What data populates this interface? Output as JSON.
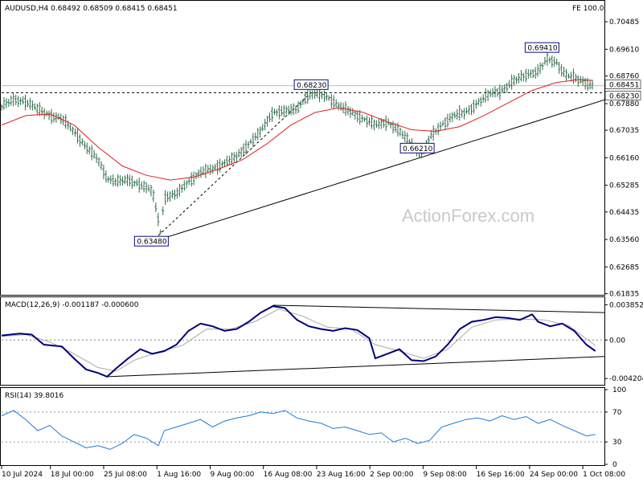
{
  "colors": {
    "price": "#2e6a4a",
    "ma": "#e02020",
    "macd": "#00007a",
    "signal": "#a8a8a8",
    "rsi": "#1a7ad8",
    "trend": "#000000",
    "box_border": "#0a0a8c"
  },
  "header": {
    "symbol_line": "AUDUSD,H4  0.68492 0.68509 0.68415 0.68451",
    "fe_label": "FE 100.0"
  },
  "watermark": "ActionForex.com",
  "chart_data": [
    {
      "type": "candlestick",
      "panel": "price",
      "ylim": [
        0.6185,
        0.711
      ],
      "yticks": [
        "0.70485",
        "0.69610",
        "0.68760",
        "0.67880",
        "0.67035",
        "0.66160",
        "0.65285",
        "0.64435",
        "0.63560",
        "0.62685",
        "0.61835"
      ],
      "current_price": "0.68451",
      "reference_level": "0.68230",
      "annotations": [
        {
          "label": "0.63480",
          "x": 0.2485,
          "value": 0.6348
        },
        {
          "label": "0.68230",
          "x": 0.5135,
          "value": 0.6823
        },
        {
          "label": "0.66210",
          "x": 0.6895,
          "value": 0.6621
        },
        {
          "label": "0.69410",
          "x": 0.8965,
          "value": 0.6941
        }
      ],
      "price_path": [
        [
          0.0,
          0.678
        ],
        [
          0.02,
          0.68
        ],
        [
          0.04,
          0.6795
        ],
        [
          0.06,
          0.677
        ],
        [
          0.08,
          0.675
        ],
        [
          0.1,
          0.674
        ],
        [
          0.12,
          0.67
        ],
        [
          0.14,
          0.665
        ],
        [
          0.16,
          0.661
        ],
        [
          0.175,
          0.655
        ],
        [
          0.19,
          0.654
        ],
        [
          0.21,
          0.6545
        ],
        [
          0.23,
          0.653
        ],
        [
          0.25,
          0.651
        ],
        [
          0.26,
          0.642
        ],
        [
          0.262,
          0.635
        ],
        [
          0.27,
          0.649
        ],
        [
          0.29,
          0.65
        ],
        [
          0.31,
          0.654
        ],
        [
          0.33,
          0.657
        ],
        [
          0.35,
          0.658
        ],
        [
          0.37,
          0.66
        ],
        [
          0.39,
          0.662
        ],
        [
          0.41,
          0.666
        ],
        [
          0.43,
          0.67
        ],
        [
          0.45,
          0.676
        ],
        [
          0.47,
          0.6765
        ],
        [
          0.49,
          0.677
        ],
        [
          0.505,
          0.681
        ],
        [
          0.52,
          0.682
        ],
        [
          0.54,
          0.681
        ],
        [
          0.56,
          0.678
        ],
        [
          0.58,
          0.676
        ],
        [
          0.6,
          0.674
        ],
        [
          0.62,
          0.672
        ],
        [
          0.64,
          0.673
        ],
        [
          0.66,
          0.67
        ],
        [
          0.68,
          0.666
        ],
        [
          0.69,
          0.663
        ],
        [
          0.7,
          0.664
        ],
        [
          0.71,
          0.668
        ],
        [
          0.73,
          0.672
        ],
        [
          0.75,
          0.675
        ],
        [
          0.77,
          0.676
        ],
        [
          0.79,
          0.679
        ],
        [
          0.81,
          0.682
        ],
        [
          0.83,
          0.683
        ],
        [
          0.85,
          0.686
        ],
        [
          0.87,
          0.688
        ],
        [
          0.89,
          0.689
        ],
        [
          0.905,
          0.693
        ],
        [
          0.92,
          0.692
        ],
        [
          0.935,
          0.688
        ],
        [
          0.95,
          0.687
        ],
        [
          0.965,
          0.6858
        ],
        [
          0.98,
          0.6845
        ]
      ],
      "ma_path": [
        [
          0.0,
          0.672
        ],
        [
          0.04,
          0.675
        ],
        [
          0.08,
          0.6755
        ],
        [
          0.12,
          0.672
        ],
        [
          0.16,
          0.665
        ],
        [
          0.2,
          0.659
        ],
        [
          0.24,
          0.656
        ],
        [
          0.28,
          0.6545
        ],
        [
          0.32,
          0.6555
        ],
        [
          0.36,
          0.658
        ],
        [
          0.4,
          0.661
        ],
        [
          0.44,
          0.666
        ],
        [
          0.48,
          0.672
        ],
        [
          0.52,
          0.676
        ],
        [
          0.56,
          0.6775
        ],
        [
          0.6,
          0.676
        ],
        [
          0.64,
          0.673
        ],
        [
          0.68,
          0.6705
        ],
        [
          0.72,
          0.67
        ],
        [
          0.76,
          0.6715
        ],
        [
          0.8,
          0.675
        ],
        [
          0.84,
          0.679
        ],
        [
          0.88,
          0.683
        ],
        [
          0.92,
          0.6855
        ],
        [
          0.96,
          0.6865
        ],
        [
          0.98,
          0.6862
        ]
      ],
      "trendlines": [
        {
          "from": [
            0.2485,
            0.6348
          ],
          "to": [
            1.0,
            0.68
          ],
          "style": "solid"
        },
        {
          "from": [
            0.2485,
            0.6348
          ],
          "to": [
            0.5135,
            0.6823
          ],
          "style": "dashed"
        }
      ]
    },
    {
      "type": "line",
      "panel": "macd",
      "title": "MACD(12,26,9) -0.001187 -0.000600",
      "ylim": [
        -0.0048,
        0.0045
      ],
      "yticks": [
        "0.003852",
        "0.00",
        "-0.004204"
      ],
      "series": [
        {
          "values": [
            [
              0.0,
              0.0005
            ],
            [
              0.03,
              0.0007
            ],
            [
              0.05,
              0.0006
            ],
            [
              0.07,
              -0.0005
            ],
            [
              0.1,
              -0.0007
            ],
            [
              0.12,
              -0.002
            ],
            [
              0.14,
              -0.0032
            ],
            [
              0.16,
              -0.0036
            ],
            [
              0.175,
              -0.004
            ],
            [
              0.19,
              -0.0031
            ],
            [
              0.21,
              -0.002
            ],
            [
              0.23,
              -0.001
            ],
            [
              0.25,
              -0.0015
            ],
            [
              0.27,
              -0.0012
            ],
            [
              0.29,
              -0.0005
            ],
            [
              0.31,
              0.001
            ],
            [
              0.33,
              0.0018
            ],
            [
              0.35,
              0.0015
            ],
            [
              0.37,
              0.001
            ],
            [
              0.39,
              0.0012
            ],
            [
              0.41,
              0.002
            ],
            [
              0.43,
              0.003
            ],
            [
              0.45,
              0.0037
            ],
            [
              0.47,
              0.0035
            ],
            [
              0.49,
              0.0022
            ],
            [
              0.51,
              0.0015
            ],
            [
              0.53,
              0.0012
            ],
            [
              0.55,
              0.001
            ],
            [
              0.57,
              0.0013
            ],
            [
              0.59,
              0.0011
            ],
            [
              0.61,
              0.0002
            ],
            [
              0.62,
              -0.002
            ],
            [
              0.64,
              -0.0015
            ],
            [
              0.66,
              -0.001
            ],
            [
              0.68,
              -0.0022
            ],
            [
              0.7,
              -0.0023
            ],
            [
              0.72,
              -0.0018
            ],
            [
              0.74,
              -0.0005
            ],
            [
              0.76,
              0.0012
            ],
            [
              0.78,
              0.002
            ],
            [
              0.8,
              0.0022
            ],
            [
              0.82,
              0.0025
            ],
            [
              0.84,
              0.0024
            ],
            [
              0.86,
              0.0022
            ],
            [
              0.88,
              0.0028
            ],
            [
              0.89,
              0.002
            ],
            [
              0.91,
              0.0015
            ],
            [
              0.93,
              0.0018
            ],
            [
              0.95,
              0.001
            ],
            [
              0.97,
              -0.0005
            ],
            [
              0.985,
              -0.0012
            ]
          ]
        },
        {
          "values": [
            [
              0.0,
              0.0004
            ],
            [
              0.04,
              0.0006
            ],
            [
              0.08,
              -0.0002
            ],
            [
              0.12,
              -0.0015
            ],
            [
              0.16,
              -0.003
            ],
            [
              0.19,
              -0.0034
            ],
            [
              0.22,
              -0.0022
            ],
            [
              0.26,
              -0.0013
            ],
            [
              0.3,
              -0.0006
            ],
            [
              0.34,
              0.0012
            ],
            [
              0.38,
              0.0012
            ],
            [
              0.42,
              0.002
            ],
            [
              0.46,
              0.0034
            ],
            [
              0.5,
              0.0026
            ],
            [
              0.54,
              0.0014
            ],
            [
              0.58,
              0.0012
            ],
            [
              0.62,
              -0.0005
            ],
            [
              0.66,
              -0.0012
            ],
            [
              0.7,
              -0.002
            ],
            [
              0.74,
              -0.001
            ],
            [
              0.78,
              0.0014
            ],
            [
              0.82,
              0.0022
            ],
            [
              0.86,
              0.0023
            ],
            [
              0.9,
              0.0022
            ],
            [
              0.94,
              0.0016
            ],
            [
              0.985,
              -0.0006
            ]
          ]
        }
      ],
      "trendlines": [
        {
          "from": [
            0.45,
            0.0038
          ],
          "to": [
            1.0,
            0.003
          ],
          "style": "solid"
        },
        {
          "from": [
            0.175,
            -0.004
          ],
          "to": [
            1.0,
            -0.0018
          ],
          "style": "solid"
        }
      ]
    },
    {
      "type": "line",
      "panel": "rsi",
      "title": "RSI(14) 39.8016",
      "ylim": [
        0,
        100
      ],
      "yticks": [
        "100",
        "70",
        "30",
        "0"
      ],
      "levels": [
        70,
        30
      ],
      "series": [
        {
          "values": [
            [
              0.0,
              65
            ],
            [
              0.02,
              72
            ],
            [
              0.04,
              60
            ],
            [
              0.06,
              45
            ],
            [
              0.08,
              52
            ],
            [
              0.1,
              38
            ],
            [
              0.12,
              30
            ],
            [
              0.14,
              22
            ],
            [
              0.16,
              25
            ],
            [
              0.18,
              20
            ],
            [
              0.2,
              28
            ],
            [
              0.22,
              40
            ],
            [
              0.24,
              35
            ],
            [
              0.26,
              25
            ],
            [
              0.27,
              45
            ],
            [
              0.29,
              50
            ],
            [
              0.31,
              55
            ],
            [
              0.33,
              60
            ],
            [
              0.35,
              50
            ],
            [
              0.37,
              58
            ],
            [
              0.39,
              62
            ],
            [
              0.41,
              65
            ],
            [
              0.43,
              70
            ],
            [
              0.45,
              68
            ],
            [
              0.47,
              72
            ],
            [
              0.49,
              62
            ],
            [
              0.51,
              58
            ],
            [
              0.53,
              55
            ],
            [
              0.55,
              48
            ],
            [
              0.57,
              50
            ],
            [
              0.59,
              45
            ],
            [
              0.61,
              40
            ],
            [
              0.63,
              42
            ],
            [
              0.65,
              30
            ],
            [
              0.67,
              35
            ],
            [
              0.69,
              28
            ],
            [
              0.71,
              32
            ],
            [
              0.73,
              50
            ],
            [
              0.75,
              55
            ],
            [
              0.77,
              60
            ],
            [
              0.79,
              62
            ],
            [
              0.81,
              58
            ],
            [
              0.83,
              65
            ],
            [
              0.85,
              60
            ],
            [
              0.87,
              64
            ],
            [
              0.89,
              55
            ],
            [
              0.91,
              60
            ],
            [
              0.93,
              52
            ],
            [
              0.95,
              45
            ],
            [
              0.97,
              38
            ],
            [
              0.985,
              40
            ]
          ]
        }
      ]
    }
  ],
  "x_axis": {
    "ticks": [
      {
        "label": "10 Jul 2024",
        "x": 0.0
      },
      {
        "label": "18 Jul 00:00",
        "x": 0.088
      },
      {
        "label": "25 Jul 08:00",
        "x": 0.184
      },
      {
        "label": "1 Aug 16:00",
        "x": 0.28
      },
      {
        "label": "9 Aug 00:00",
        "x": 0.376
      },
      {
        "label": "16 Aug 08:00",
        "x": 0.472
      },
      {
        "label": "23 Aug 16:00",
        "x": 0.568
      },
      {
        "label": "2 Sep 00:00",
        "x": 0.664
      },
      {
        "label": "9 Sep 08:00",
        "x": 0.76
      },
      {
        "label": "16 Sep 16:00",
        "x": 0.856
      },
      {
        "label": "24 Sep 00:00",
        "x": 0.952
      },
      {
        "label": "1 Oct 08:00",
        "x": 1.048
      }
    ]
  }
}
